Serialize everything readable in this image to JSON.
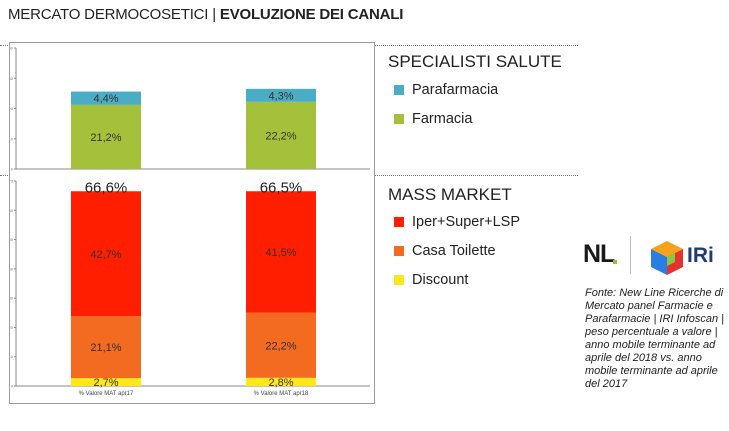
{
  "title": {
    "regular": "MERCATO DERMOCOSETICI | ",
    "bold": "EVOLUZIONE DEI CANALI"
  },
  "legend": {
    "specialisti_title": "SPECIALISTI SALUTE",
    "specialisti_items": [
      {
        "label": "Parafarmacia",
        "color": "#4bacc6"
      },
      {
        "label": "Farmacia",
        "color": "#a5c13b"
      }
    ],
    "mass_title": "MASS MARKET",
    "mass_items": [
      {
        "label": "Iper+Super+LSP",
        "color": "#ff1e00"
      },
      {
        "label": "Casa Toilette",
        "color": "#f26b21"
      },
      {
        "label": "Discount",
        "color": "#ffe81a"
      }
    ]
  },
  "logos": {
    "nl": "NL",
    "iri": "IRi"
  },
  "source": "Fonte:  New Line Ricerche di Mercato panel Farmacie e Parafarmacie | IRI Infoscan | peso percentuale a valore | anno mobile terminante ad aprile del 2018 vs. anno mobile terminante ad aprile del 2017",
  "chart_data": [
    {
      "type": "bar",
      "stacked": true,
      "categories": [
        "% Valore MAT apr17",
        "% Valore MAT apr18"
      ],
      "ylim": [
        0,
        40
      ],
      "yticks": [
        "0",
        "10",
        "20",
        "30",
        "40"
      ],
      "grid": false,
      "series": [
        {
          "name": "Farmacia",
          "values": [
            21.2,
            22.2
          ],
          "labels": [
            "21,2%",
            "22,2%"
          ],
          "color": "#a5c13b"
        },
        {
          "name": "Parafarmacia",
          "values": [
            4.4,
            4.3
          ],
          "labels": [
            "4,4%",
            "4,3%"
          ],
          "color": "#4bacc6"
        }
      ]
    },
    {
      "type": "bar",
      "stacked": true,
      "categories": [
        "% Valore MAT apr17",
        "% Valore MAT apr18"
      ],
      "ylim": [
        0,
        70
      ],
      "yticks": [
        "0",
        "10",
        "20",
        "30",
        "40",
        "50",
        "60",
        "70"
      ],
      "grid": false,
      "totals": [
        "66,6%",
        "66,5%"
      ],
      "series": [
        {
          "name": "Discount",
          "values": [
            2.7,
            2.8
          ],
          "labels": [
            "2,7%",
            "2,8%"
          ],
          "color": "#ffe81a"
        },
        {
          "name": "Casa Toilette",
          "values": [
            21.1,
            22.2
          ],
          "labels": [
            "21,1%",
            "22,2%"
          ],
          "color": "#f26b21"
        },
        {
          "name": "Iper+Super+LSP",
          "values": [
            42.7,
            41.5
          ],
          "labels": [
            "42,7%",
            "41,5%"
          ],
          "color": "#ff1e00"
        }
      ]
    }
  ]
}
